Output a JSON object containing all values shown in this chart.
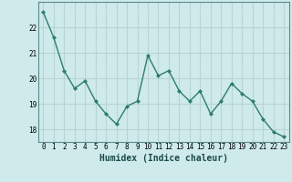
{
  "x": [
    0,
    1,
    2,
    3,
    4,
    5,
    6,
    7,
    8,
    9,
    10,
    11,
    12,
    13,
    14,
    15,
    16,
    17,
    18,
    19,
    20,
    21,
    22,
    23
  ],
  "y": [
    22.6,
    21.6,
    20.3,
    19.6,
    19.9,
    19.1,
    18.6,
    18.2,
    18.9,
    19.1,
    20.9,
    20.1,
    20.3,
    19.5,
    19.1,
    19.5,
    18.6,
    19.1,
    19.8,
    19.4,
    19.1,
    18.4,
    17.9,
    17.7
  ],
  "line_color": "#2e7d6e",
  "marker": "D",
  "marker_size": 2.0,
  "line_width": 1.0,
  "xlabel": "Humidex (Indice chaleur)",
  "xlabel_fontsize": 7,
  "ylim": [
    17.5,
    23.0
  ],
  "yticks": [
    18,
    19,
    20,
    21,
    22
  ],
  "xticks": [
    0,
    1,
    2,
    3,
    4,
    5,
    6,
    7,
    8,
    9,
    10,
    11,
    12,
    13,
    14,
    15,
    16,
    17,
    18,
    19,
    20,
    21,
    22,
    23
  ],
  "tick_fontsize": 5.5,
  "bg_color": "#ceeaea",
  "grid_major_color": "#b8d4d4",
  "grid_minor_color": "#ceeaea",
  "spine_color": "#5a8a8a"
}
